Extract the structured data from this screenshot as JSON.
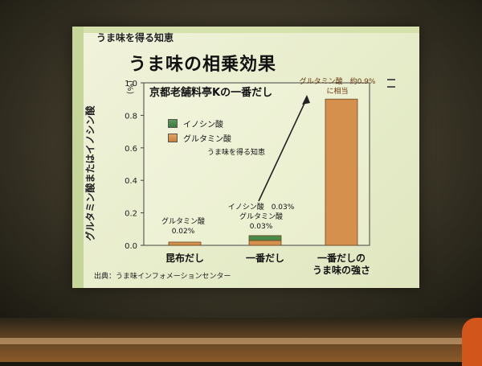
{
  "slide": {
    "eyebrow": "うま味を得る知恵",
    "title": "うま味の相乗効果",
    "source": "出典：うま味インフォメーションセンター"
  },
  "colors": {
    "inosinic": "#4a8a48",
    "glutamic": "#d4904c",
    "arrow": "#222222"
  },
  "chart_data": {
    "type": "bar",
    "title": "京都老舗料亭Kの一番だし",
    "ylabel": "グルタミン酸またはイノシン酸",
    "yunit": "(%)",
    "ylim": [
      0,
      1.0
    ],
    "yticks": [
      "0.0",
      "0.2",
      "0.4",
      "0.6",
      "0.8",
      "1.0"
    ],
    "yticks_values": [
      0,
      0.2,
      0.4,
      0.6,
      0.8,
      1.0
    ],
    "categories": [
      "昆布だし",
      "一番だし",
      "一番だしの\nうま味の強さ"
    ],
    "category_lines": [
      [
        "昆布だし"
      ],
      [
        "一番だし"
      ],
      [
        "一番だしの",
        "うま味の強さ"
      ]
    ],
    "series": [
      {
        "name": "イノシン酸",
        "values": [
          0,
          0.03,
          0
        ]
      },
      {
        "name": "グルタミン酸",
        "values": [
          0.02,
          0.03,
          0.9
        ]
      }
    ],
    "annotations": {
      "kombu": [
        "グルタミン酸",
        "0.02%"
      ],
      "ichiban": [
        "イノシン酸　0.03%",
        "グルタミン酸",
        "0.03%"
      ],
      "strength": [
        "グルタミン酸　約0.9%",
        "に相当"
      ],
      "arrow": "うま味を得る知恵"
    },
    "legend_position": "top-left"
  }
}
